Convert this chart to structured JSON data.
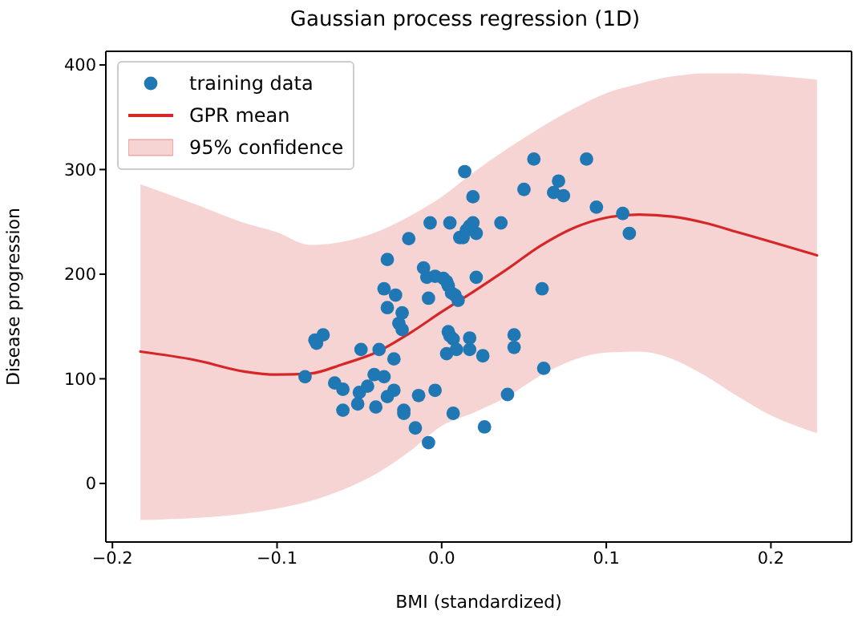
{
  "chart_data": {
    "type": "scatter",
    "title": "Gaussian process regression (1D)",
    "xlabel": "BMI (standardized)",
    "ylabel": "Disease progression",
    "xlim": [
      -0.204,
      0.249
    ],
    "ylim": [
      -56,
      413
    ],
    "xticks": [
      {
        "value": -0.2,
        "label": "−0.2"
      },
      {
        "value": -0.1,
        "label": "−0.1"
      },
      {
        "value": 0,
        "label": "0.0"
      },
      {
        "value": 0.1,
        "label": "0.1"
      },
      {
        "value": 0.2,
        "label": "0.2"
      }
    ],
    "yticks": [
      0,
      100,
      200,
      300,
      400
    ],
    "grid": false,
    "legend": "top left",
    "marker": "circle",
    "annotations": [
      "95% confidence"
    ],
    "series": [
      {
        "name": "training data",
        "color": "#1f77b4",
        "x": [
          -0.083,
          -0.077,
          -0.076,
          -0.072,
          -0.065,
          -0.06,
          -0.06,
          -0.051,
          -0.05,
          -0.049,
          -0.045,
          -0.041,
          -0.04,
          -0.038,
          -0.035,
          -0.033,
          -0.035,
          -0.033,
          -0.033,
          -0.029,
          -0.029,
          -0.028,
          -0.026,
          -0.024,
          -0.024,
          -0.023,
          -0.023,
          -0.02,
          -0.016,
          -0.014,
          -0.011,
          -0.009,
          -0.008,
          -0.008,
          -0.007,
          -0.004,
          -0.004,
          0.001,
          0.003,
          0.004,
          0.006,
          0.008,
          0.005,
          0.004,
          0.005,
          0.007,
          0.003,
          0.007,
          0.009,
          0.01,
          0.011,
          0.013,
          0.015,
          0.017,
          0.019,
          0.021,
          0.019,
          0.017,
          0.017,
          0.021,
          0.014,
          0.025,
          0.026,
          0.036,
          0.04,
          0.044,
          0.044,
          0.05,
          0.056,
          0.061,
          0.062,
          0.071,
          0.068,
          0.074,
          0.088,
          0.094,
          0.11,
          0.114
        ],
        "values": [
          102,
          137,
          134,
          142,
          96,
          90,
          70,
          76,
          87,
          128,
          93,
          104,
          73,
          128,
          102,
          214,
          186,
          168,
          83,
          89,
          119,
          180,
          153,
          163,
          147,
          70,
          67,
          234,
          53,
          84,
          206,
          197,
          177,
          39,
          249,
          89,
          198,
          196,
          193,
          189,
          182,
          180,
          249,
          145,
          141,
          138,
          124,
          67,
          128,
          175,
          235,
          235,
          242,
          246,
          249,
          239,
          274,
          139,
          128,
          197,
          298,
          122,
          54,
          249,
          85,
          142,
          130,
          281,
          310,
          186,
          110,
          289,
          278,
          275,
          310,
          264,
          258,
          239
        ]
      },
      {
        "name": "GPR mean",
        "type": "line",
        "color": "#d62728",
        "marker": "none",
        "line_style": "solid",
        "x": [
          -0.183,
          -0.15,
          -0.12,
          -0.1,
          -0.08,
          -0.06,
          -0.04,
          -0.02,
          0,
          0.02,
          0.04,
          0.06,
          0.08,
          0.1,
          0.12,
          0.14,
          0.16,
          0.18,
          0.2,
          0.228
        ],
        "values": [
          126,
          118,
          107,
          104,
          105,
          114,
          125,
          143,
          164,
          184,
          205,
          227,
          244,
          254,
          257,
          255,
          249,
          240,
          231,
          218
        ],
        "lower": [
          -35,
          -33,
          -29,
          -24,
          -17,
          -6,
          9,
          30,
          55,
          68,
          83,
          103,
          118,
          125,
          126,
          119,
          103,
          83,
          65,
          48
        ],
        "upper": [
          286,
          267,
          249,
          240,
          228,
          231,
          240,
          255,
          274,
          298,
          320,
          340,
          358,
          373,
          382,
          389,
          392,
          392,
          390,
          386
        ]
      }
    ]
  }
}
